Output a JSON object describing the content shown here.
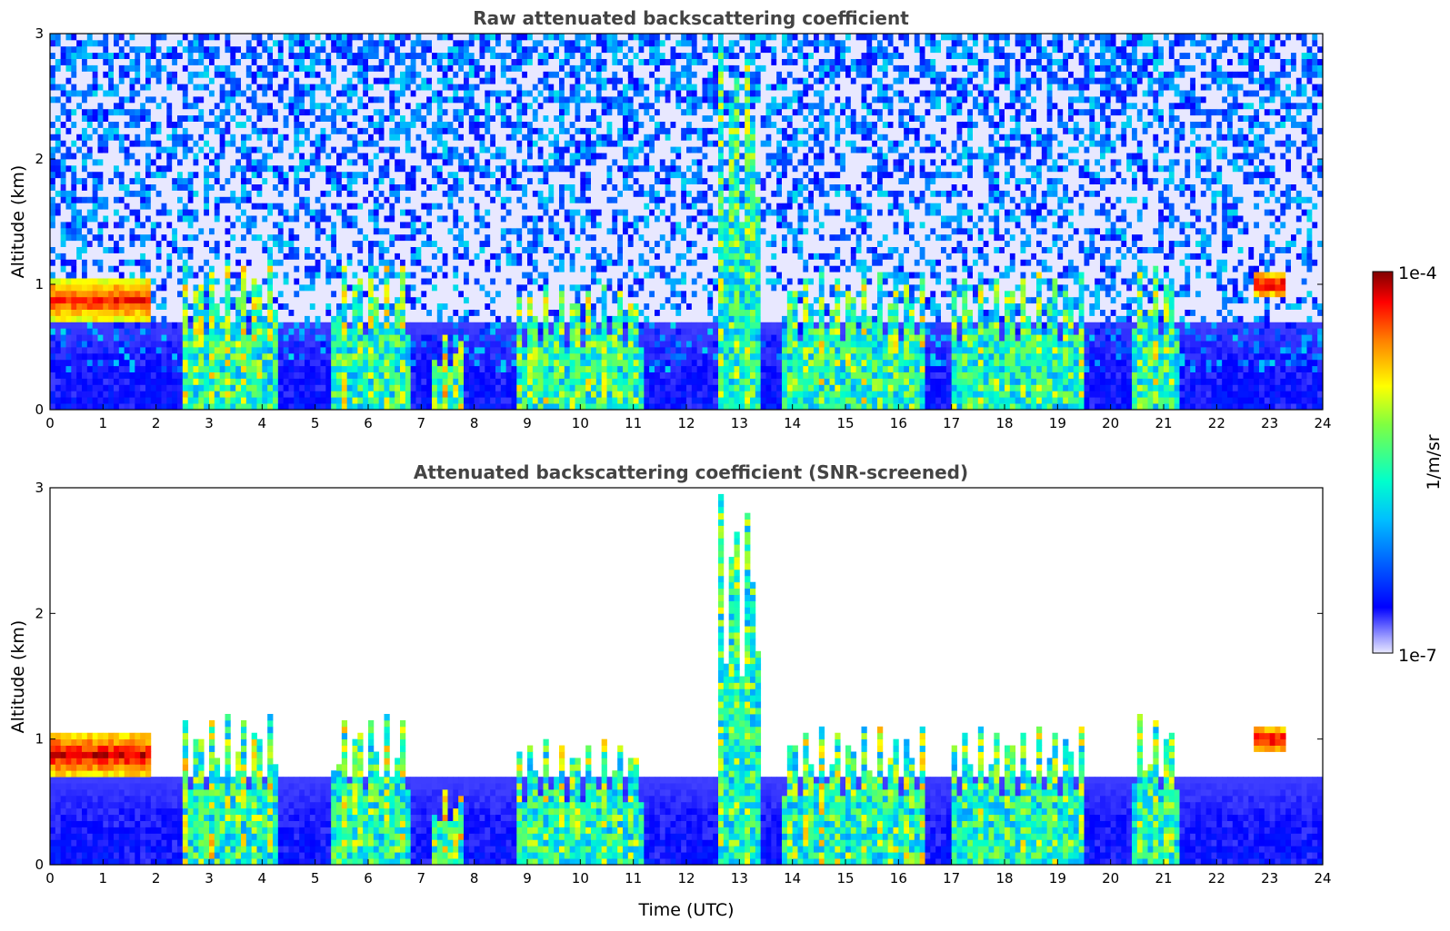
{
  "chart_data": [
    {
      "type": "heatmap",
      "title": "Raw attenuated backscattering coefficient",
      "xlabel": "",
      "ylabel": "Altitude (km)",
      "xlim": [
        0,
        24
      ],
      "ylim": [
        0,
        3
      ],
      "x_ticks": [
        "0",
        "1",
        "2",
        "3",
        "4",
        "5",
        "6",
        "7",
        "8",
        "9",
        "10",
        "11",
        "12",
        "13",
        "14",
        "15",
        "16",
        "17",
        "18",
        "19",
        "20",
        "21",
        "22",
        "23",
        "24"
      ],
      "y_ticks": [
        "0",
        "1",
        "2",
        "3"
      ],
      "noise": 0.8,
      "cloud_layers": [
        {
          "x": [
            0,
            1.9
          ],
          "base_km": 0.7,
          "top_km": 1.05,
          "intensity": 0.95
        },
        {
          "x": [
            22.7,
            23.3
          ],
          "base_km": 0.9,
          "top_km": 1.1,
          "intensity": 1.0
        }
      ],
      "plumes": [
        {
          "x": [
            2.5,
            4.3
          ],
          "top_km": 1.2,
          "intensity": 0.85
        },
        {
          "x": [
            5.3,
            6.8
          ],
          "top_km": 1.2,
          "intensity": 0.8
        },
        {
          "x": [
            7.2,
            7.8
          ],
          "top_km": 0.6,
          "intensity": 0.9
        },
        {
          "x": [
            8.8,
            11.2
          ],
          "top_km": 1.0,
          "intensity": 0.8
        },
        {
          "x": [
            12.6,
            13.4
          ],
          "top_km": 3.0,
          "intensity": 0.75
        },
        {
          "x": [
            13.8,
            16.5
          ],
          "top_km": 1.1,
          "intensity": 0.8
        },
        {
          "x": [
            17.0,
            19.5
          ],
          "top_km": 1.1,
          "intensity": 0.75
        },
        {
          "x": [
            20.4,
            21.3
          ],
          "top_km": 1.2,
          "intensity": 0.8
        }
      ]
    },
    {
      "type": "heatmap",
      "title": "Attenuated backscattering coefficient (SNR-screened)",
      "xlabel": "Time (UTC)",
      "ylabel": "Altitude (km)",
      "xlim": [
        0,
        24
      ],
      "ylim": [
        0,
        3
      ],
      "x_ticks": [
        "0",
        "1",
        "2",
        "3",
        "4",
        "5",
        "6",
        "7",
        "8",
        "9",
        "10",
        "11",
        "12",
        "13",
        "14",
        "15",
        "16",
        "17",
        "18",
        "19",
        "20",
        "21",
        "22",
        "23",
        "24"
      ],
      "y_ticks": [
        "0",
        "1",
        "2",
        "3"
      ],
      "noise": 0.0,
      "cloud_layers": [
        {
          "x": [
            0,
            1.9
          ],
          "base_km": 0.7,
          "top_km": 1.05,
          "intensity": 1.0
        },
        {
          "x": [
            22.7,
            23.3
          ],
          "base_km": 0.9,
          "top_km": 1.1,
          "intensity": 1.0
        }
      ],
      "plumes": [
        {
          "x": [
            2.5,
            4.3
          ],
          "top_km": 1.2,
          "intensity": 0.85
        },
        {
          "x": [
            5.3,
            6.8
          ],
          "top_km": 1.2,
          "intensity": 0.8
        },
        {
          "x": [
            7.2,
            7.8
          ],
          "top_km": 0.6,
          "intensity": 0.95
        },
        {
          "x": [
            8.8,
            11.2
          ],
          "top_km": 1.0,
          "intensity": 0.8
        },
        {
          "x": [
            12.6,
            13.4
          ],
          "top_km": 3.0,
          "intensity": 0.75
        },
        {
          "x": [
            13.8,
            16.5
          ],
          "top_km": 1.1,
          "intensity": 0.8
        },
        {
          "x": [
            17.0,
            19.5
          ],
          "top_km": 1.1,
          "intensity": 0.75
        },
        {
          "x": [
            20.4,
            21.3
          ],
          "top_km": 1.2,
          "intensity": 0.8
        }
      ]
    }
  ],
  "colorbar": {
    "label": "1/m/sr",
    "max_label": "1e-4",
    "min_label": "1e-7",
    "colormap": "jet",
    "scale": "log",
    "range": [
      1e-07,
      0.0001
    ]
  }
}
